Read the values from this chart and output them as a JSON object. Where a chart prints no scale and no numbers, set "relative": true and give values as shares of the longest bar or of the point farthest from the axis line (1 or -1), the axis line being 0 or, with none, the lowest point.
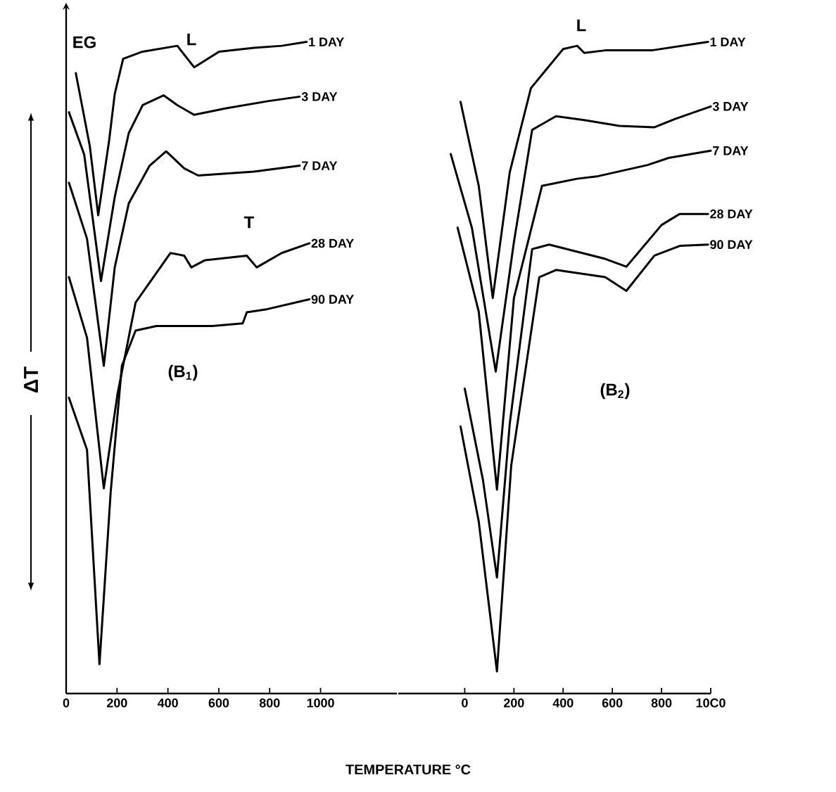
{
  "chart_data": [
    {
      "type": "line",
      "relative": true,
      "xlabel": "TEMPERATURE °C",
      "ylabel": "ΔT",
      "xlim": [
        0,
        1300
      ],
      "xticks": [
        0,
        200,
        400,
        600,
        800,
        1000
      ],
      "annotations": [
        "EG",
        "L",
        "T",
        "(B$_{1}$)"
      ],
      "series": [
        {
          "name": "1 DAY",
          "color": "#000000",
          "x": [
            38,
            93,
            126,
            169,
            191,
            224,
            300,
            437,
            503,
            601,
            738,
            847,
            945
          ],
          "values": [
            0.952,
            0.84,
            0.734,
            0.849,
            0.92,
            0.974,
            0.985,
            0.994,
            0.961,
            0.985,
            0.991,
            0.994,
            1.0
          ]
        },
        {
          "name": "3 DAY",
          "color": "#000000",
          "x": [
            11,
            71,
            137,
            191,
            246,
            301,
            383,
            437,
            503,
            628,
            792,
            918
          ],
          "values": [
            0.892,
            0.827,
            0.633,
            0.762,
            0.86,
            0.903,
            0.918,
            0.903,
            0.888,
            0.898,
            0.909,
            0.916
          ]
        },
        {
          "name": "7 DAY",
          "color": "#000000",
          "x": [
            11,
            82,
            148,
            191,
            246,
            328,
            393,
            464,
            519,
            738,
            918
          ],
          "values": [
            0.784,
            0.698,
            0.503,
            0.654,
            0.752,
            0.81,
            0.832,
            0.806,
            0.795,
            0.801,
            0.81
          ]
        },
        {
          "name": "28 DAY",
          "color": "#000000",
          "x": [
            11,
            82,
            148,
            202,
            273,
            410,
            464,
            492,
            546,
            710,
            749,
            847,
            956
          ],
          "values": [
            0.639,
            0.546,
            0.315,
            0.46,
            0.6,
            0.676,
            0.672,
            0.654,
            0.665,
            0.672,
            0.654,
            0.676,
            0.691
          ]
        },
        {
          "name": "90 DAY",
          "color": "#000000",
          "x": [
            11,
            82,
            131,
            175,
            219,
            273,
            355,
            574,
            694,
            710,
            792,
            956
          ],
          "values": [
            0.454,
            0.374,
            0.045,
            0.309,
            0.503,
            0.557,
            0.564,
            0.564,
            0.568,
            0.585,
            0.59,
            0.605
          ]
        }
      ]
    },
    {
      "type": "line",
      "relative": true,
      "xlim": [
        -270,
        1000
      ],
      "xticks": [
        0,
        200,
        400,
        600,
        800,
        {
          "value": 1000,
          "label": "10C0"
        }
      ],
      "annotations": [
        "L",
        "(B$_{2}$)"
      ],
      "series": [
        {
          "name": "1 DAY",
          "color": "#000000",
          "x": [
            -17,
            57,
            114,
            183,
            269,
            400,
            457,
            486,
            571,
            760,
            989
          ],
          "values": [
            0.908,
            0.779,
            0.607,
            0.8,
            0.929,
            0.989,
            0.994,
            0.983,
            0.987,
            0.987,
            1.0
          ]
        },
        {
          "name": "3 DAY",
          "color": "#000000",
          "x": [
            -57,
            29,
            126,
            200,
            274,
            371,
            486,
            629,
            771,
            857,
            1000
          ],
          "values": [
            0.828,
            0.715,
            0.494,
            0.693,
            0.865,
            0.886,
            0.88,
            0.871,
            0.869,
            0.882,
            0.901
          ]
        },
        {
          "name": "7 DAY",
          "color": "#000000",
          "x": [
            -29,
            57,
            131,
            200,
            314,
            457,
            543,
            743,
            829,
            1000
          ],
          "values": [
            0.715,
            0.586,
            0.313,
            0.607,
            0.779,
            0.79,
            0.794,
            0.811,
            0.822,
            0.833
          ]
        },
        {
          "name": "28 DAY",
          "color": "#000000",
          "x": [
            0,
            74,
            131,
            183,
            274,
            343,
            571,
            657,
            800,
            874,
            989
          ],
          "values": [
            0.468,
            0.328,
            0.178,
            0.414,
            0.682,
            0.689,
            0.667,
            0.655,
            0.719,
            0.736,
            0.736
          ]
        },
        {
          "name": "90 DAY",
          "color": "#000000",
          "x": [
            -17,
            57,
            131,
            189,
            303,
            371,
            571,
            657,
            771,
            874,
            989
          ],
          "values": [
            0.41,
            0.264,
            0.034,
            0.35,
            0.639,
            0.65,
            0.639,
            0.618,
            0.672,
            0.687,
            0.689
          ]
        }
      ]
    }
  ]
}
